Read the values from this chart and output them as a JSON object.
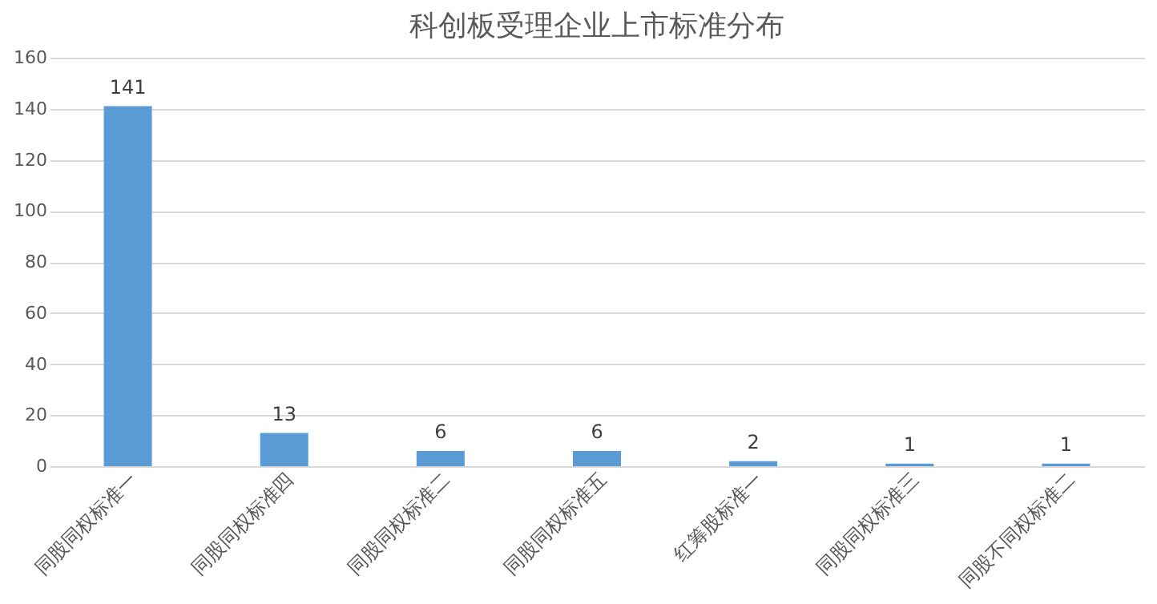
{
  "chart_data": {
    "type": "bar",
    "title": "科创板受理企业上市标准分布",
    "categories": [
      "同股同权标准一",
      "同股同权标准四",
      "同股同权标准二",
      "同股同权标准五",
      "红筹股标准一",
      "同股同权标准三",
      "同股不同权标准二"
    ],
    "values": [
      141,
      13,
      6,
      6,
      2,
      1,
      1
    ],
    "color": "#5b9bd5",
    "ylim": [
      0,
      160
    ],
    "yticks": [
      0,
      20,
      40,
      60,
      80,
      100,
      120,
      140,
      160
    ],
    "grid": "y",
    "data_labels": true
  }
}
